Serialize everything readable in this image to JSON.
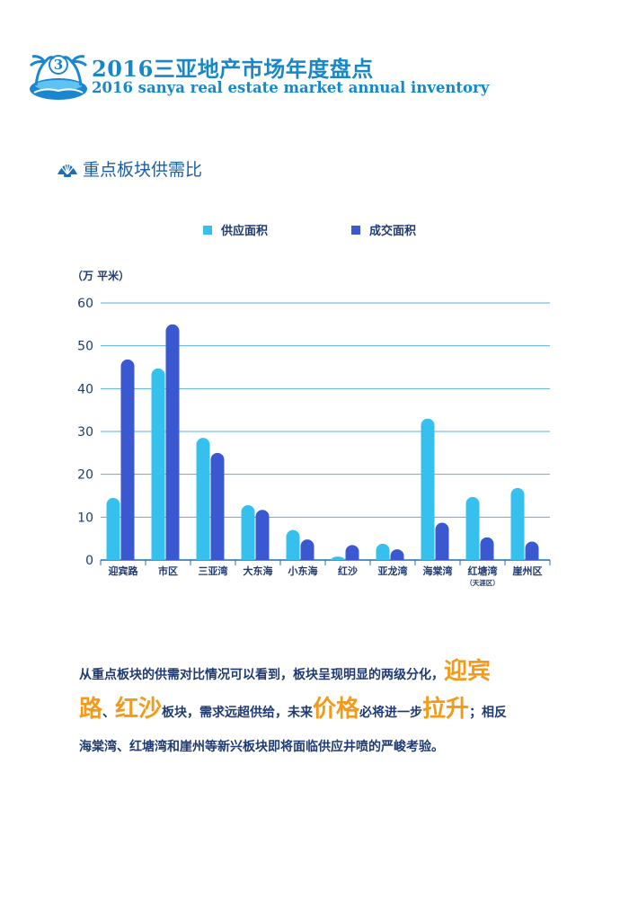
{
  "header": {
    "page_number": "3",
    "title_cn": "2016三亚地产市场年度盘点",
    "title_en": "2016 sanya real estate market annual inventory"
  },
  "section": {
    "title": "重点板块供需比",
    "icon": "shell-icon"
  },
  "chart_data": {
    "type": "bar",
    "ylabel": "（万 平米）",
    "ylim": [
      0,
      60
    ],
    "yticks": [
      0,
      10,
      20,
      30,
      40,
      50,
      60
    ],
    "grid": true,
    "legend_position": "top",
    "categories": [
      "迎宾路",
      "市区",
      "三亚湾",
      "大东海",
      "小东海",
      "红沙",
      "亚龙湾",
      "海棠湾",
      "红塘湾",
      "崖州区"
    ],
    "category_sublabels": [
      "",
      "",
      "",
      "",
      "",
      "",
      "",
      "",
      "（天涯区）",
      ""
    ],
    "series": [
      {
        "name": "供应面积",
        "color": "#36c0ee",
        "values": [
          14.5,
          44.7,
          28.5,
          12.8,
          7.0,
          0.8,
          3.8,
          33.0,
          14.7,
          16.8
        ]
      },
      {
        "name": "成交面积",
        "color": "#3a58cf",
        "values": [
          46.8,
          55.0,
          25.0,
          11.7,
          4.8,
          3.5,
          2.5,
          8.7,
          5.3,
          4.3
        ]
      }
    ]
  },
  "body": {
    "p1": "从重点板块的供需对比情况可以看到，板块呈现明显的两级分化，",
    "h1": "迎宾",
    "h2": "路",
    "sep1": "、",
    "h3": "红沙",
    "p2": "板块，需求远超供给，未来",
    "h4": "价格",
    "p3": "必将进一步",
    "h5": "拉升",
    "p4": "；相反",
    "p5": "海棠湾、红塘湾和崖州等新兴板块即将面临供应井喷的严峻考验。"
  },
  "colors": {
    "accent_blue": "#1688c9",
    "highlight_orange": "#f39a1a"
  }
}
